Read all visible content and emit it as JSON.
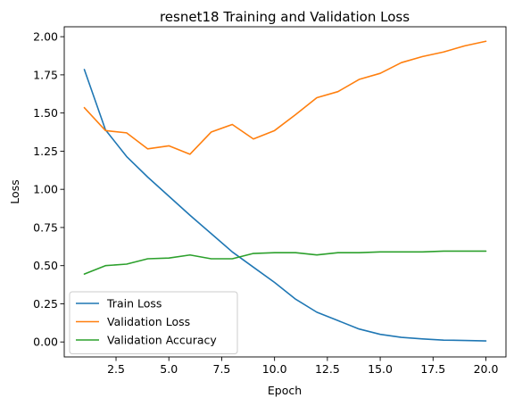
{
  "chart_data": {
    "type": "line",
    "title": "resnet18 Training and Validation Loss",
    "xlabel": "Epoch",
    "ylabel": "Loss",
    "xlim": [
      0.05,
      20.95
    ],
    "ylim": [
      -0.098,
      2.065
    ],
    "xticks": [
      2.5,
      5.0,
      7.5,
      10.0,
      12.5,
      15.0,
      17.5,
      20.0
    ],
    "xtick_labels": [
      "2.5",
      "5.0",
      "7.5",
      "10.0",
      "12.5",
      "15.0",
      "17.5",
      "20.0"
    ],
    "yticks": [
      0.0,
      0.25,
      0.5,
      0.75,
      1.0,
      1.25,
      1.5,
      1.75,
      2.0
    ],
    "ytick_labels": [
      "0.00",
      "0.25",
      "0.50",
      "0.75",
      "1.00",
      "1.25",
      "1.50",
      "1.75",
      "2.00"
    ],
    "grid": false,
    "legend_position": "lower-left",
    "x": [
      1,
      2,
      3,
      4,
      5,
      6,
      7,
      8,
      9,
      10,
      11,
      12,
      13,
      14,
      15,
      16,
      17,
      18,
      19,
      20
    ],
    "series": [
      {
        "name": "Train Loss",
        "color": "#1f77b4",
        "values": [
          1.785,
          1.39,
          1.215,
          1.08,
          0.955,
          0.83,
          0.71,
          0.59,
          0.49,
          0.39,
          0.28,
          0.195,
          0.14,
          0.085,
          0.05,
          0.03,
          0.02,
          0.012,
          0.01,
          0.007
        ]
      },
      {
        "name": "Validation Loss",
        "color": "#ff7f0e",
        "values": [
          1.535,
          1.385,
          1.37,
          1.265,
          1.285,
          1.23,
          1.375,
          1.425,
          1.33,
          1.385,
          1.49,
          1.6,
          1.64,
          1.72,
          1.76,
          1.83,
          1.87,
          1.9,
          1.94,
          1.97
        ]
      },
      {
        "name": "Validation Accuracy",
        "color": "#2ca02c",
        "values": [
          0.445,
          0.5,
          0.51,
          0.545,
          0.55,
          0.57,
          0.545,
          0.545,
          0.58,
          0.585,
          0.585,
          0.57,
          0.585,
          0.585,
          0.59,
          0.59,
          0.59,
          0.595,
          0.595,
          0.595
        ]
      }
    ]
  }
}
